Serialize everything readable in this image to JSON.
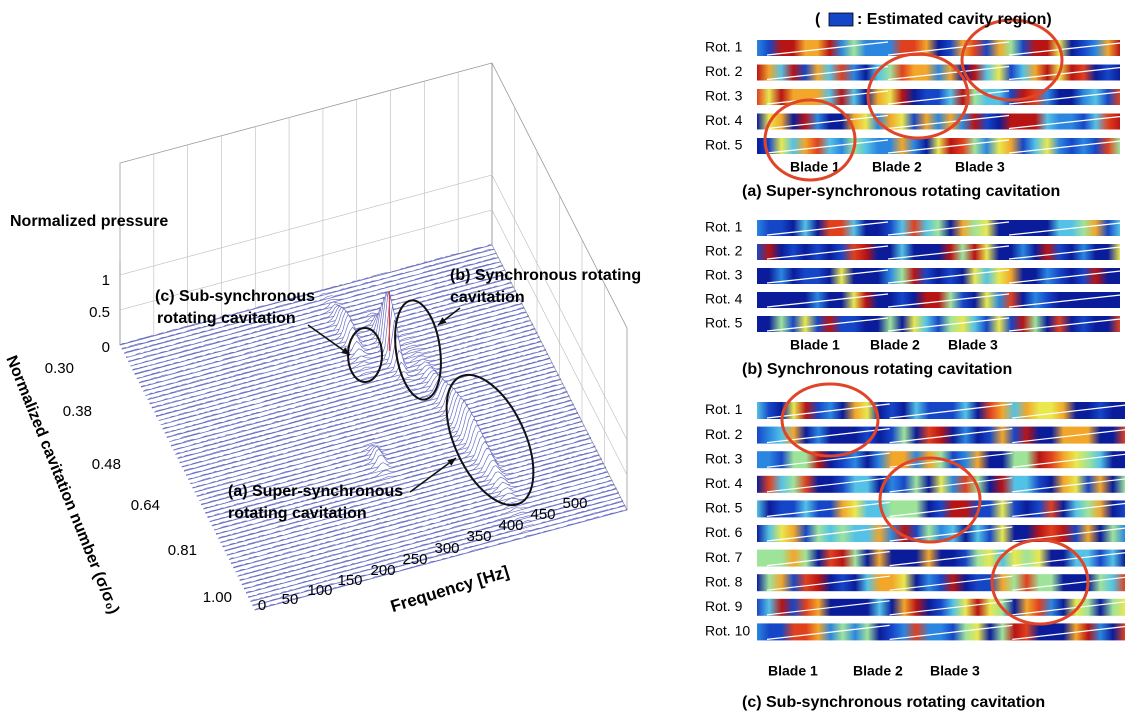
{
  "plot": {
    "z_axis_label": "Normalized pressure",
    "z_ticks": [
      "0",
      "0.5",
      "1"
    ],
    "depth_axis_label": "Normalized cavitation number (σ/σ₀)",
    "depth_ticks": [
      "0.30",
      "0.38",
      "0.48",
      "0.64",
      "0.81",
      "1.00"
    ],
    "x_axis_label": "Frequency [Hz]",
    "x_ticks": [
      "0",
      "50",
      "100",
      "150",
      "200",
      "250",
      "300",
      "350",
      "400",
      "450",
      "500"
    ],
    "annotations": [
      [
        "(c) Sub-synchronous",
        "rotating cavitation"
      ],
      [
        "(b) Synchronous rotating",
        "cavitation"
      ],
      [
        "(a) Super-synchronous",
        "rotating cavitation"
      ]
    ]
  },
  "legend": {
    "open": "(",
    "text": ": Estimated cavity region)"
  },
  "panels": [
    {
      "title": "(a) Super-synchronous rotating cavitation",
      "rows": [
        "Rot. 1",
        "Rot. 2",
        "Rot. 3",
        "Rot. 4",
        "Rot. 5"
      ],
      "blades": [
        "Blade 1",
        "Blade 2",
        "Blade 3"
      ]
    },
    {
      "title": "(b) Synchronous rotating cavitation",
      "rows": [
        "Rot. 1",
        "Rot. 2",
        "Rot. 3",
        "Rot. 4",
        "Rot. 5"
      ],
      "blades": [
        "Blade 1",
        "Blade 2",
        "Blade 3"
      ]
    },
    {
      "title": "(c) Sub-synchronous rotating cavitation",
      "rows": [
        "Rot. 1",
        "Rot. 2",
        "Rot. 3",
        "Rot. 4",
        "Rot. 5",
        "Rot. 6",
        "Rot. 7",
        "Rot. 8",
        "Rot. 9",
        "Rot. 10"
      ],
      "blades": [
        "Blade 1",
        "Blade 2",
        "Blade 3"
      ]
    }
  ]
}
